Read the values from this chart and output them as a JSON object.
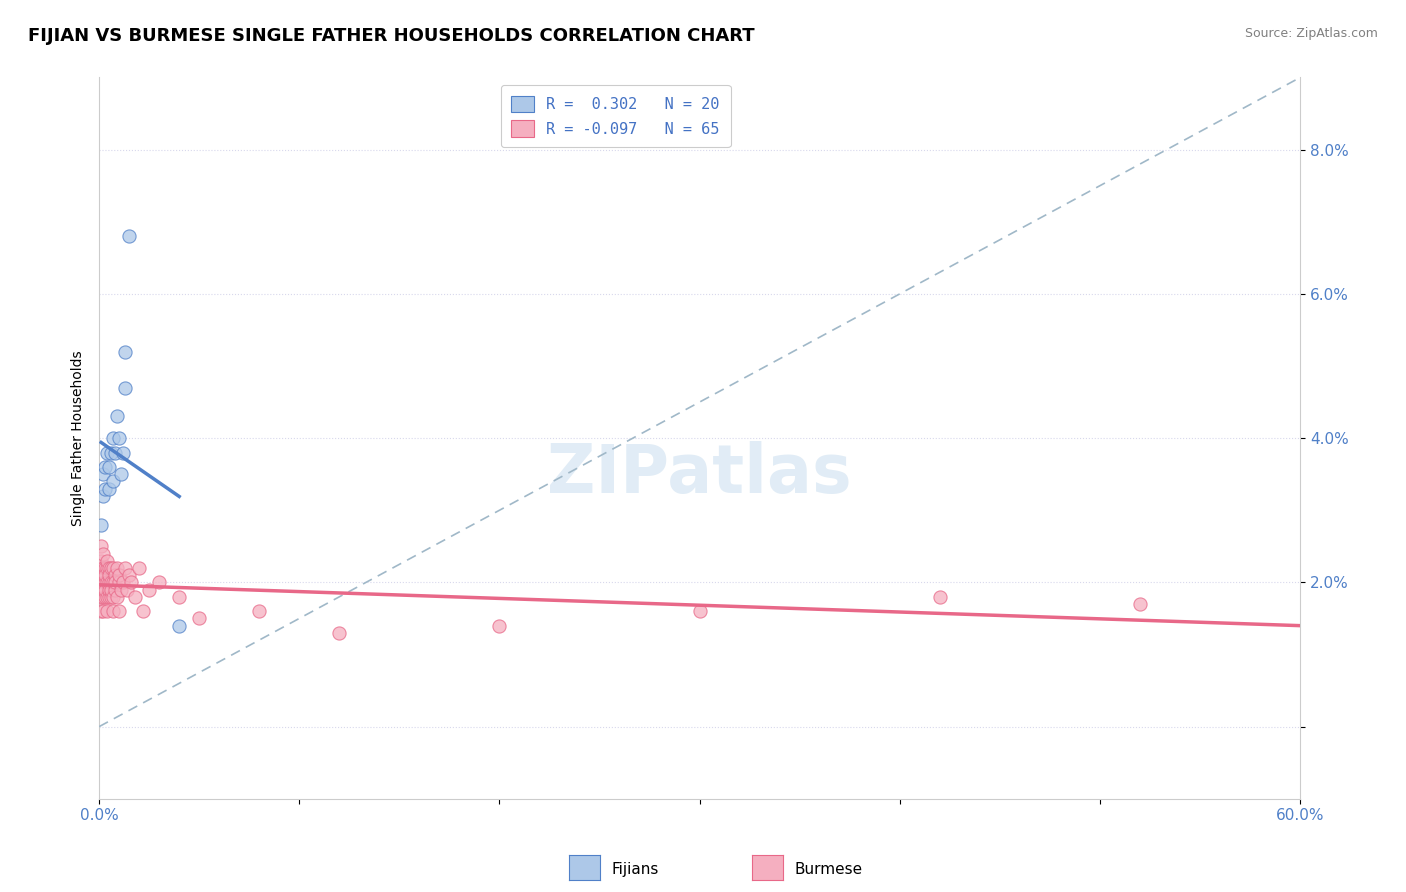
{
  "title": "FIJIAN VS BURMESE SINGLE FATHER HOUSEHOLDS CORRELATION CHART",
  "source": "Source: ZipAtlas.com",
  "ylabel": "Single Father Households",
  "xlim": [
    0.0,
    0.6
  ],
  "ylim": [
    -0.01,
    0.09
  ],
  "background_color": "#ffffff",
  "grid_color": "#d8d8ec",
  "fijian_color": "#adc8e8",
  "burmese_color": "#f5afc0",
  "fijian_line_color": "#5080c8",
  "burmese_line_color": "#e86888",
  "diag_line_color": "#a0b8c8",
  "tick_color": "#5080c8",
  "legend_fijian_label": "R =  0.302   N = 20",
  "legend_burmese_label": "R = -0.097   N = 65",
  "watermark": "ZIPatlas",
  "title_fontsize": 13,
  "axis_label_fontsize": 10,
  "tick_fontsize": 11,
  "legend_fontsize": 11,
  "scatter_size": 90,
  "scatter_alpha": 0.75,
  "scatter_linewidth": 0.8,
  "fijian_x": [
    0.001,
    0.002,
    0.002,
    0.003,
    0.003,
    0.004,
    0.005,
    0.005,
    0.006,
    0.007,
    0.007,
    0.008,
    0.009,
    0.01,
    0.011,
    0.012,
    0.013,
    0.013,
    0.015,
    0.04
  ],
  "fijian_y": [
    0.028,
    0.032,
    0.035,
    0.033,
    0.036,
    0.038,
    0.033,
    0.036,
    0.038,
    0.034,
    0.04,
    0.038,
    0.043,
    0.04,
    0.035,
    0.038,
    0.047,
    0.052,
    0.068,
    0.014
  ],
  "burmese_x": [
    0.001,
    0.001,
    0.001,
    0.001,
    0.001,
    0.001,
    0.001,
    0.001,
    0.002,
    0.002,
    0.002,
    0.002,
    0.002,
    0.002,
    0.002,
    0.003,
    0.003,
    0.003,
    0.003,
    0.003,
    0.004,
    0.004,
    0.004,
    0.004,
    0.004,
    0.005,
    0.005,
    0.005,
    0.005,
    0.005,
    0.006,
    0.006,
    0.006,
    0.006,
    0.007,
    0.007,
    0.007,
    0.007,
    0.008,
    0.008,
    0.008,
    0.009,
    0.009,
    0.01,
    0.01,
    0.01,
    0.011,
    0.012,
    0.013,
    0.014,
    0.015,
    0.016,
    0.018,
    0.02,
    0.022,
    0.025,
    0.03,
    0.04,
    0.05,
    0.08,
    0.12,
    0.2,
    0.3,
    0.42,
    0.52
  ],
  "burmese_y": [
    0.022,
    0.02,
    0.018,
    0.021,
    0.019,
    0.016,
    0.023,
    0.025,
    0.02,
    0.018,
    0.022,
    0.019,
    0.021,
    0.016,
    0.024,
    0.02,
    0.018,
    0.022,
    0.019,
    0.021,
    0.02,
    0.018,
    0.022,
    0.016,
    0.023,
    0.02,
    0.018,
    0.022,
    0.019,
    0.021,
    0.02,
    0.018,
    0.022,
    0.019,
    0.02,
    0.018,
    0.022,
    0.016,
    0.021,
    0.019,
    0.02,
    0.018,
    0.022,
    0.02,
    0.016,
    0.021,
    0.019,
    0.02,
    0.022,
    0.019,
    0.021,
    0.02,
    0.018,
    0.022,
    0.016,
    0.019,
    0.02,
    0.018,
    0.015,
    0.016,
    0.013,
    0.014,
    0.016,
    0.018,
    0.017
  ]
}
